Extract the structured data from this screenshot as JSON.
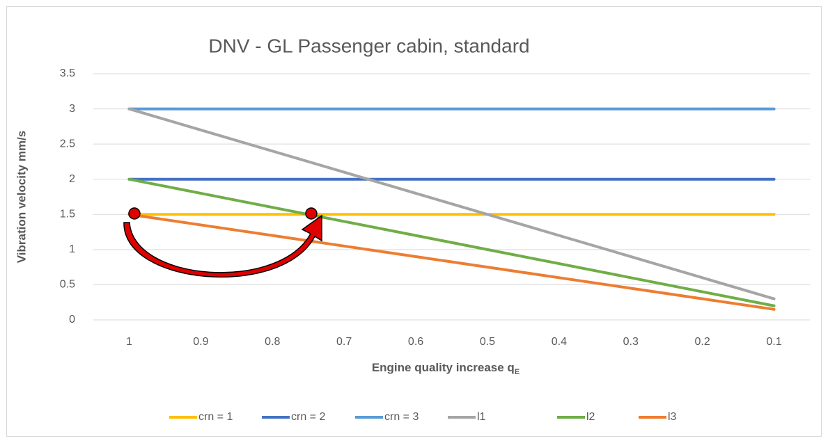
{
  "chart_data": {
    "type": "line",
    "title": "DNV - GL Passenger cabin, standard",
    "ylabel": "Vibration velocity mm/s",
    "xlabel": "Engine quality  increase q",
    "xlabel_subscript": "E",
    "categories": [
      "1",
      "0.9",
      "0.8",
      "0.7",
      "0.6",
      "0.5",
      "0.4",
      "0.3",
      "0.2",
      "0.1"
    ],
    "series": [
      {
        "name": "crn = 1",
        "color": "#ffc000",
        "values": [
          1.5,
          1.5,
          1.5,
          1.5,
          1.5,
          1.5,
          1.5,
          1.5,
          1.5,
          1.5
        ]
      },
      {
        "name": "crn = 2",
        "color": "#4472c4",
        "values": [
          2,
          2,
          2,
          2,
          2,
          2,
          2,
          2,
          2,
          2
        ]
      },
      {
        "name": "crn = 3",
        "color": "#5b9bd5",
        "values": [
          3,
          3,
          3,
          3,
          3,
          3,
          3,
          3,
          3,
          3
        ]
      },
      {
        "name": "l1",
        "color": "#a5a5a5",
        "values": [
          3,
          2.7,
          2.4,
          2.1,
          1.8,
          1.5,
          1.2,
          0.9,
          0.6,
          0.3
        ]
      },
      {
        "name": "l2",
        "color": "#70ad47",
        "values": [
          2,
          1.8,
          1.6,
          1.4,
          1.2,
          1,
          0.8,
          0.6,
          0.4,
          0.2
        ]
      },
      {
        "name": "l3",
        "color": "#ed7d31",
        "values": [
          1.5,
          1.35,
          1.2,
          1.05,
          0.9,
          0.75,
          0.6,
          0.45,
          0.3,
          0.15
        ]
      }
    ],
    "ylim": [
      0,
      3.5
    ],
    "yticks": [
      0,
      0.5,
      1,
      1.5,
      2,
      2.5,
      3,
      3.5
    ],
    "grid": true,
    "legend": "bottom"
  }
}
